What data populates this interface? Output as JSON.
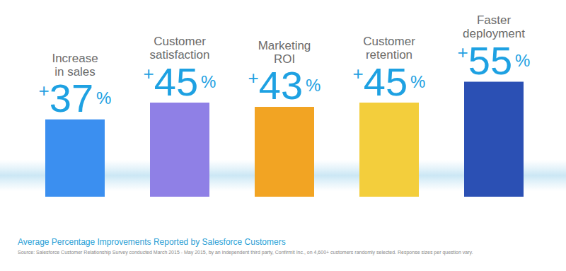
{
  "chart_data": {
    "type": "bar",
    "title": "Average Percentage Improvements Reported by Salesforce Customers",
    "source": "Source: Salesforce Customer Relationship Survey conducted March 2015 - May 2015, by an independent third party, Confirmit Inc., on 4,600+ customers randomly selected. Response sizes per question vary.",
    "categories": [
      "Increase in sales",
      "Customer satisfaction",
      "Marketing ROI",
      "Customer retention",
      "Faster deployment"
    ],
    "values": [
      37,
      45,
      43,
      45,
      55
    ],
    "value_labels": [
      "+37%",
      "+45%",
      "+43%",
      "+45%",
      "+55%"
    ],
    "colors": [
      "#3b8ff0",
      "#8f80e6",
      "#f2a423",
      "#f3ce3c",
      "#2b50b4"
    ],
    "ylim": [
      0,
      90
    ],
    "yticks": [
      0,
      30,
      60,
      90
    ],
    "grid": false,
    "tick_labels": false,
    "data_labels": true
  }
}
